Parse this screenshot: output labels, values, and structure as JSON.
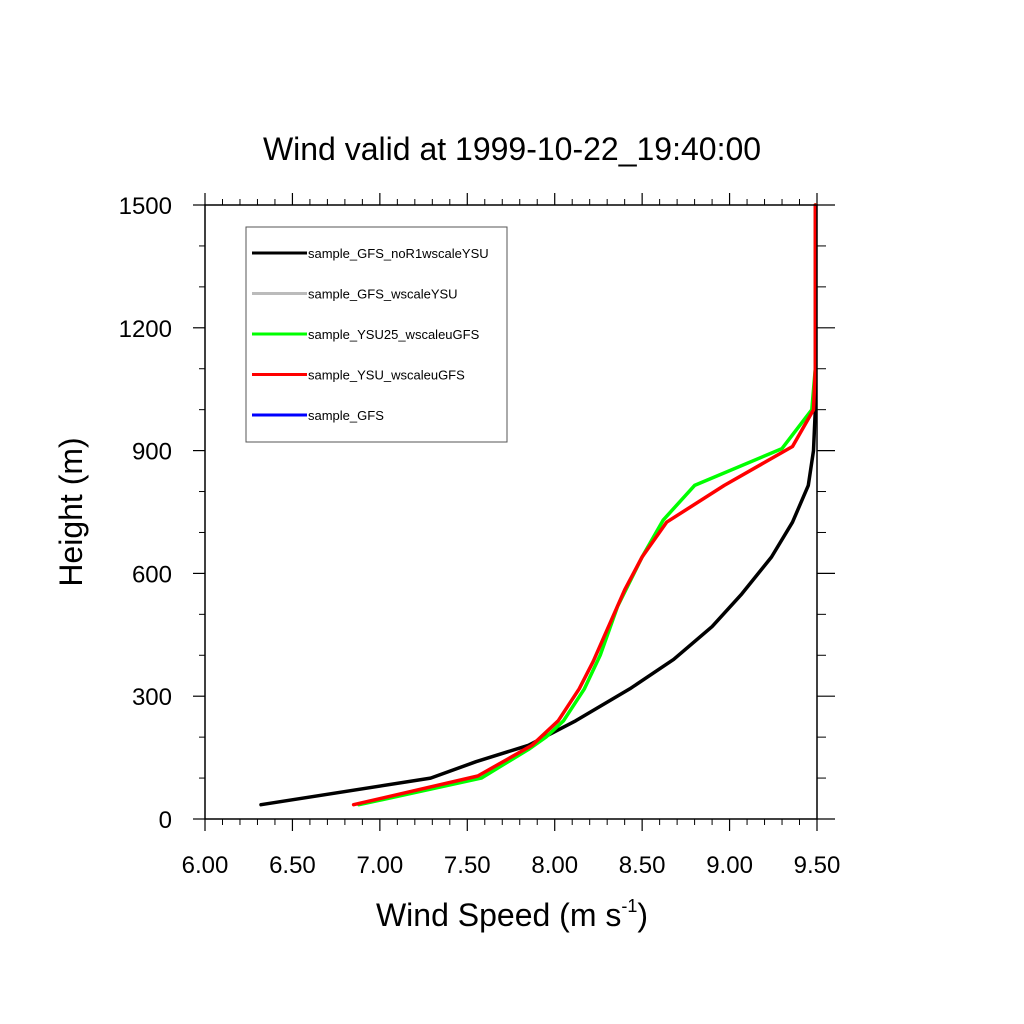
{
  "chart_data": {
    "type": "line",
    "title": "Wind valid at 1999-10-22_19:40:00",
    "xlabel": "Wind Speed (m s",
    "xlabel_sup": "-1",
    "xlabel_close": ")",
    "ylabel": "Height (m)",
    "xlim": [
      6.0,
      9.5
    ],
    "ylim": [
      0,
      1500
    ],
    "x_ticks": [
      "6.00",
      "6.50",
      "7.00",
      "7.50",
      "8.00",
      "8.50",
      "9.00",
      "9.50"
    ],
    "y_ticks": [
      "0",
      "300",
      "600",
      "900",
      "1200",
      "1500"
    ],
    "grid": false,
    "legend_position": "top-left",
    "series": [
      {
        "name": "sample_GFS_noR1wscaleYSU",
        "color": "#000000",
        "points": [
          [
            6.32,
            35
          ],
          [
            7.29,
            100
          ],
          [
            7.55,
            140
          ],
          [
            7.85,
            180
          ],
          [
            8.12,
            240
          ],
          [
            8.43,
            318
          ],
          [
            8.68,
            390
          ],
          [
            8.9,
            470
          ],
          [
            9.07,
            550
          ],
          [
            9.24,
            640
          ],
          [
            9.36,
            725
          ],
          [
            9.45,
            815
          ],
          [
            9.48,
            900
          ],
          [
            9.49,
            1000
          ],
          [
            9.49,
            1100
          ],
          [
            9.49,
            1200
          ],
          [
            9.49,
            1300
          ],
          [
            9.49,
            1400
          ],
          [
            9.49,
            1500
          ]
        ]
      },
      {
        "name": "sample_GFS_wscaleYSU",
        "color": "#bbbbbb",
        "points": []
      },
      {
        "name": "sample_YSU25_wscaleuGFS",
        "color": "#00ff00",
        "points": [
          [
            6.88,
            35
          ],
          [
            7.58,
            100
          ],
          [
            7.85,
            170
          ],
          [
            7.95,
            200
          ],
          [
            8.05,
            240
          ],
          [
            8.17,
            318
          ],
          [
            8.26,
            400
          ],
          [
            8.36,
            520
          ],
          [
            8.5,
            640
          ],
          [
            8.62,
            730
          ],
          [
            8.8,
            815
          ],
          [
            9.3,
            905
          ],
          [
            9.47,
            1000
          ],
          [
            9.49,
            1100
          ],
          [
            9.49,
            1200
          ],
          [
            9.49,
            1300
          ],
          [
            9.49,
            1400
          ],
          [
            9.49,
            1500
          ]
        ]
      },
      {
        "name": "sample_YSU_wscaleuGFS",
        "color": "#ff0000",
        "points": [
          [
            6.85,
            35
          ],
          [
            7.56,
            105
          ],
          [
            7.87,
            180
          ],
          [
            8.02,
            240
          ],
          [
            8.14,
            318
          ],
          [
            8.22,
            385
          ],
          [
            8.4,
            560
          ],
          [
            8.5,
            640
          ],
          [
            8.64,
            725
          ],
          [
            8.97,
            815
          ],
          [
            9.36,
            910
          ],
          [
            9.48,
            1000
          ],
          [
            9.49,
            1100
          ],
          [
            9.49,
            1200
          ],
          [
            9.49,
            1300
          ],
          [
            9.49,
            1400
          ],
          [
            9.49,
            1500
          ]
        ]
      },
      {
        "name": "sample_GFS",
        "color": "#0000ff",
        "points": []
      }
    ]
  }
}
